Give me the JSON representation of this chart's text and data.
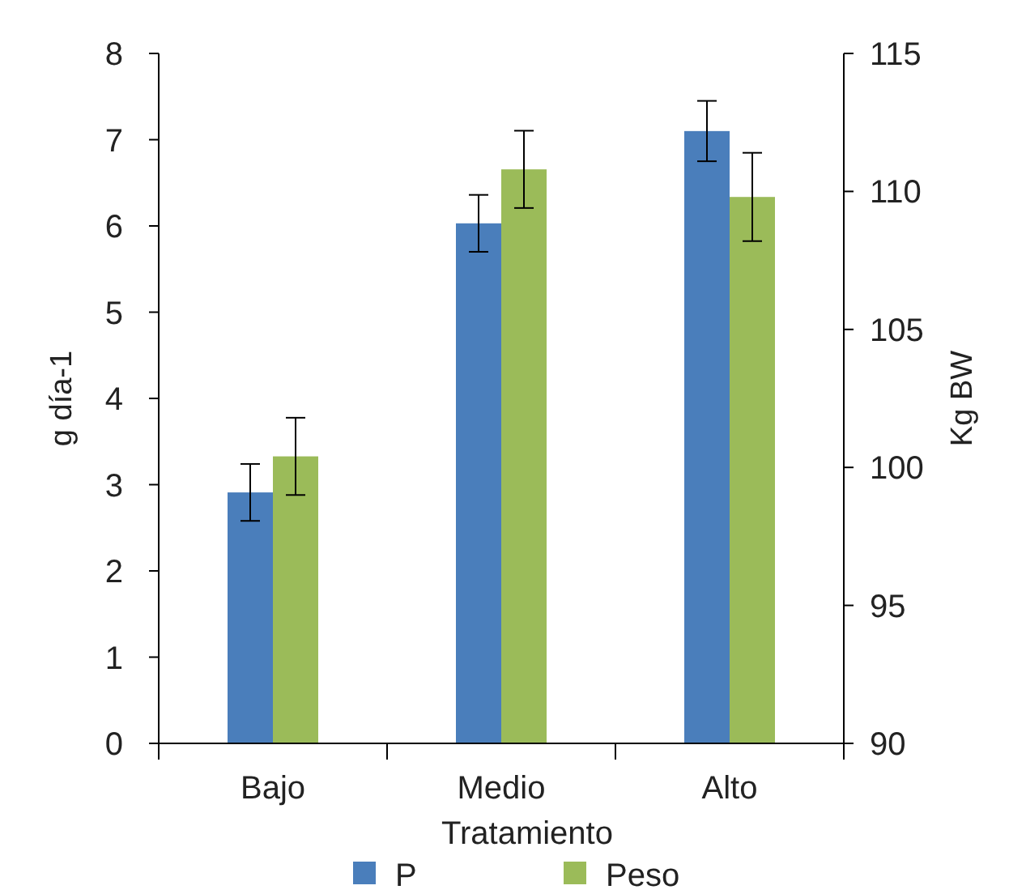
{
  "chart_data": {
    "type": "bar",
    "xlabel": "Tratamiento",
    "ylabel": "g día-1",
    "y2label": "Kg BW",
    "categories": [
      "Bajo",
      "Medio",
      "Alto"
    ],
    "series": [
      {
        "name": "P",
        "color": "#4a7ebb",
        "values": [
          2.91,
          6.03,
          7.1
        ],
        "errors": [
          0.33,
          0.33,
          0.35
        ]
      },
      {
        "name": "Peso",
        "color": "#9bbb59",
        "axis": "y2",
        "values": [
          100.4,
          110.8,
          109.8
        ],
        "errors": [
          1.4,
          1.4,
          1.6
        ]
      }
    ],
    "ylim": [
      0,
      8
    ],
    "yticks": [
      0,
      1,
      2,
      3,
      4,
      5,
      6,
      7,
      8
    ],
    "y2lim": [
      90,
      115
    ],
    "y2ticks": [
      90,
      95,
      100,
      105,
      110,
      115
    ],
    "legend": "bottom"
  }
}
